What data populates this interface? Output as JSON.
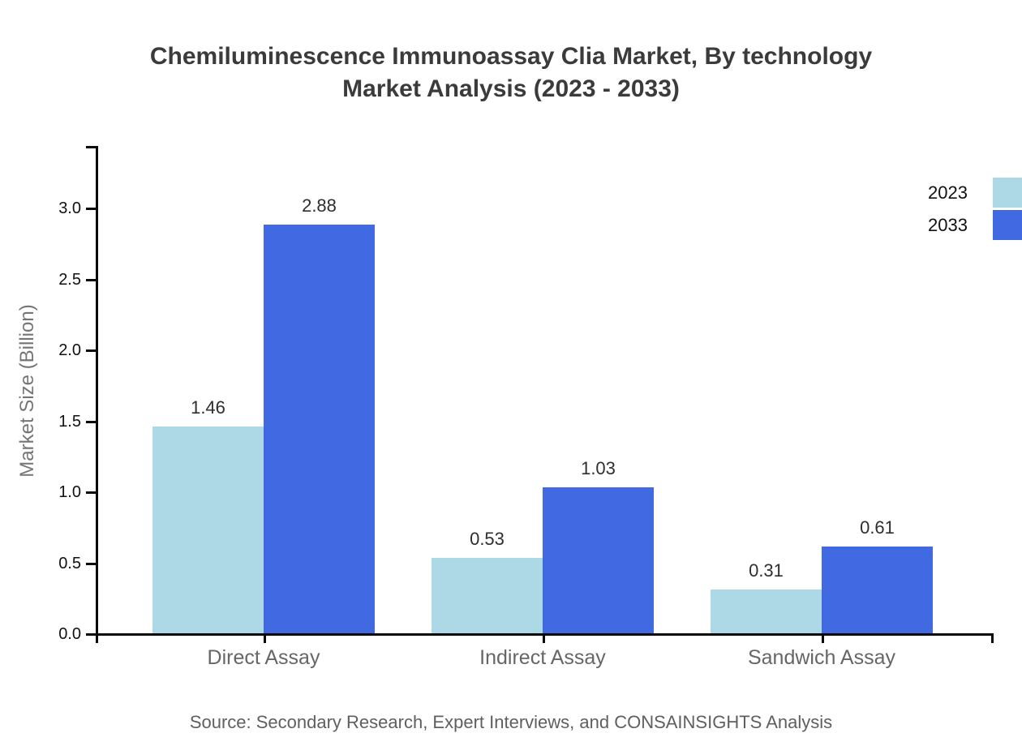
{
  "title": {
    "line1": "Chemiluminescence Immunoassay Clia Market, By technology",
    "line2": "Market Analysis (2023 - 2033)"
  },
  "source": "Source: Secondary Research, Expert Interviews, and CONSAINSIGHTS Analysis",
  "chart_data": {
    "type": "bar",
    "title": "Chemiluminescence Immunoassay Clia Market, By technology Market Analysis (2023 - 2033)",
    "categories": [
      "Direct Assay",
      "Indirect Assay",
      "Sandwich Assay"
    ],
    "series": [
      {
        "name": "2023",
        "color": "#ADD8E6",
        "values": [
          1.46,
          0.53,
          0.31
        ]
      },
      {
        "name": "2033",
        "color": "#4169E1",
        "values": [
          2.88,
          1.03,
          0.61
        ]
      }
    ],
    "xlabel": "",
    "ylabel": "Market Size (Billion)",
    "ylim": [
      0,
      3.43
    ],
    "yticks": [
      0.0,
      0.5,
      1.0,
      1.5,
      2.0,
      2.5,
      3.0
    ],
    "ytick_labels": [
      "0.0",
      "0.5",
      "1.0",
      "1.5",
      "2.0",
      "2.5",
      "3.0"
    ],
    "grid": false,
    "legend_position": "top-right",
    "bar_value_labels": true,
    "value_label_format": "0.00"
  }
}
